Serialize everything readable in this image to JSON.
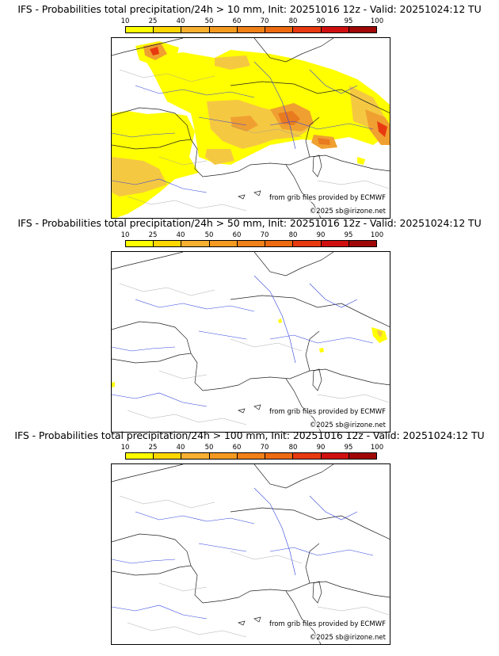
{
  "colorbar": {
    "labels": [
      "10",
      "25",
      "40",
      "50",
      "60",
      "70",
      "80",
      "90",
      "95",
      "100"
    ],
    "colors": [
      "#ffff00",
      "#ffd700",
      "#f8b030",
      "#f59a20",
      "#f08018",
      "#ee6a10",
      "#e83a10",
      "#d01010",
      "#a00808",
      "#6a0000"
    ]
  },
  "credits": {
    "source": "from grib files provided by ECMWF",
    "copyright": "©2025 sb@irizone.net"
  },
  "panels": [
    {
      "title": "IFS - Probabilities total precipitation/24h > 10 mm, Init: 20251016 12z - Valid: 20251024:12 TU"
    },
    {
      "title": "IFS - Probabilities total precipitation/24h > 50 mm, Init: 20251016 12z - Valid: 20251024:12 TU"
    },
    {
      "title": "IFS - Probabilities total precipitation/24h > 100 mm, Init: 20251016 12z - Valid: 20251024:12 TU"
    }
  ]
}
